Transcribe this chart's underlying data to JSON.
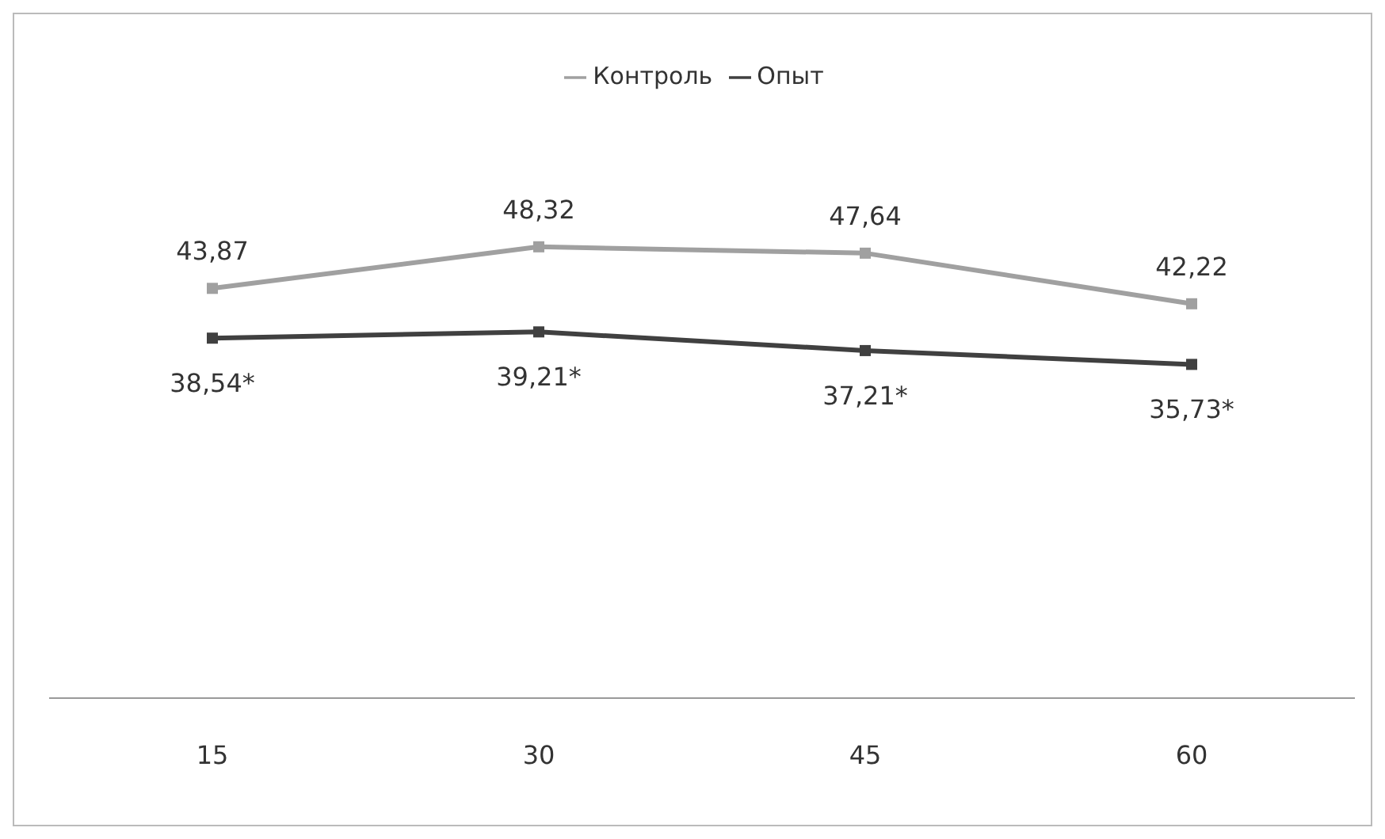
{
  "chart_data": {
    "type": "line",
    "categories": [
      "15",
      "30",
      "45",
      "60"
    ],
    "series": [
      {
        "name": "Контроль",
        "color": "#a0a0a0",
        "values": [
          43.87,
          48.32,
          47.64,
          42.22
        ],
        "value_labels": [
          "43,87",
          "48,32",
          "47,64",
          "42,22"
        ]
      },
      {
        "name": "Опыт",
        "color": "#404040",
        "values": [
          38.54,
          39.21,
          37.21,
          35.73
        ],
        "value_labels": [
          "38,54*",
          "39,21*",
          "37,21*",
          "35,73*"
        ]
      }
    ],
    "tick_labels": "x",
    "grid": false,
    "legend": "top",
    "marker": "square",
    "line_style": "solid"
  }
}
